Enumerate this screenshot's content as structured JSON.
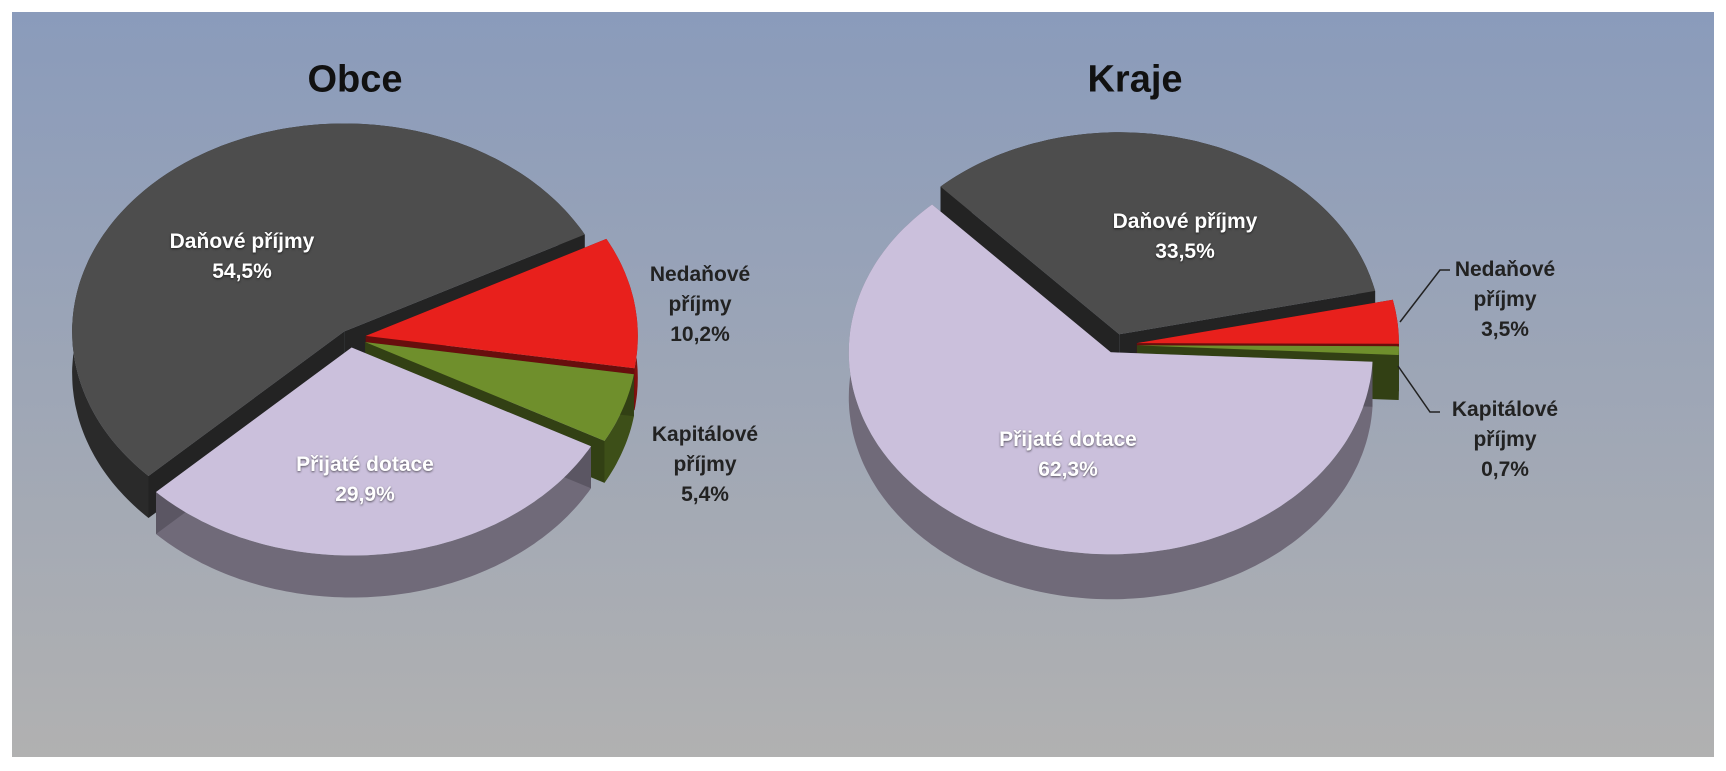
{
  "chart_data": [
    {
      "type": "pie",
      "title": "Obce",
      "categories": [
        "Daňové příjmy",
        "Nedaňové příjmy",
        "Kapitálové příjmy",
        "Přijaté dotace"
      ],
      "values": [
        54.5,
        10.2,
        5.4,
        29.9
      ],
      "value_labels": [
        "54,5%",
        "10,2%",
        "5,4%",
        "29,9%"
      ],
      "colors": [
        "#4d4d4d",
        "#e8201c",
        "#6f8f2c",
        "#cbc0dc"
      ]
    },
    {
      "type": "pie",
      "title": "Kraje",
      "categories": [
        "Daňové příjmy",
        "Nedaňové příjmy",
        "Kapitálové příjmy",
        "Přijaté dotace"
      ],
      "values": [
        33.5,
        3.5,
        0.7,
        62.3
      ],
      "value_labels": [
        "33,5%",
        "3,5%",
        "0,7%",
        "62,3%"
      ],
      "colors": [
        "#4d4d4d",
        "#e8201c",
        "#6f8f2c",
        "#cbc0dc"
      ]
    }
  ]
}
